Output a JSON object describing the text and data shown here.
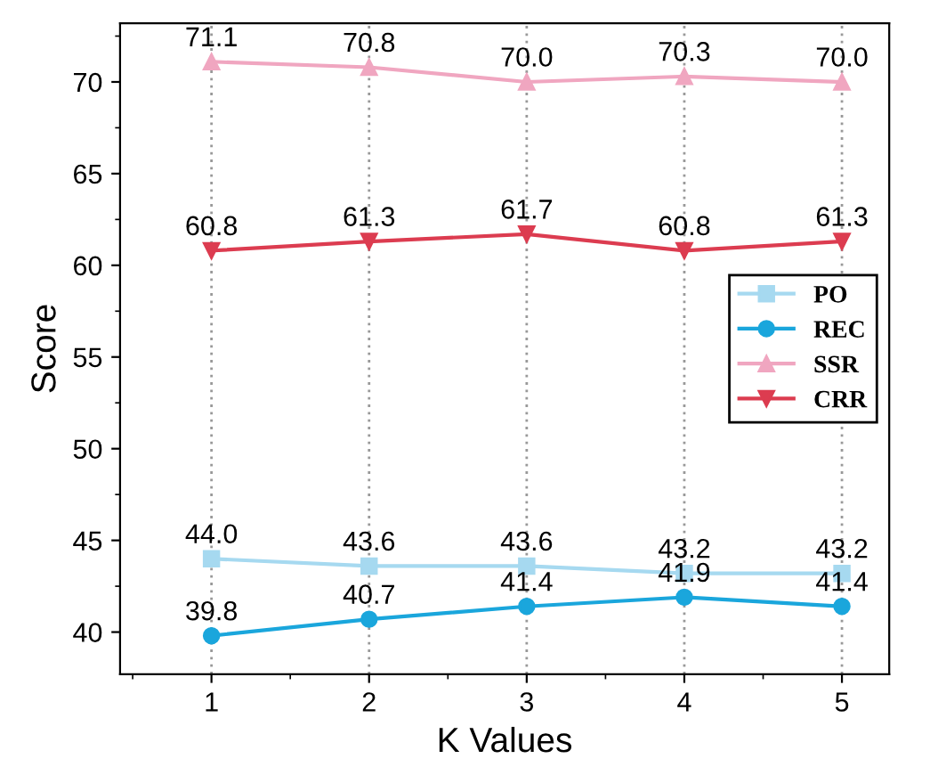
{
  "chart_data": {
    "type": "line",
    "xlabel": "K Values",
    "ylabel": "Score",
    "x": [
      1,
      2,
      3,
      4,
      5
    ],
    "xlim": [
      0.42,
      5.3
    ],
    "xticks": [
      1,
      2,
      3,
      4,
      5
    ],
    "ylim": [
      37.7,
      73.2
    ],
    "yticks": [
      40,
      45,
      50,
      55,
      60,
      65,
      70
    ],
    "grid": "x",
    "legend": "right",
    "series": [
      {
        "name": "PO",
        "color": "#a6d9f0",
        "marker": "square",
        "values": [
          44.0,
          43.6,
          43.6,
          43.2,
          43.2
        ],
        "value_labels": [
          "44.0",
          "43.6",
          "43.6",
          "43.2",
          "43.2"
        ]
      },
      {
        "name": "REC",
        "color": "#1aa6dc",
        "marker": "circle",
        "values": [
          39.8,
          40.7,
          41.4,
          41.9,
          41.4
        ],
        "value_labels": [
          "39.8",
          "40.7",
          "41.4",
          "41.9",
          "41.4"
        ]
      },
      {
        "name": "SSR",
        "color": "#f0a6c0",
        "marker": "triangle",
        "values": [
          71.1,
          70.8,
          70.0,
          70.3,
          70.0
        ],
        "value_labels": [
          "71.1",
          "70.8",
          "70.0",
          "70.3",
          "70.0"
        ]
      },
      {
        "name": "CRR",
        "color": "#dc3c50",
        "marker": "triangle_down",
        "values": [
          60.8,
          61.3,
          61.7,
          60.8,
          61.3
        ],
        "value_labels": [
          "60.8",
          "61.3",
          "61.7",
          "60.8",
          "61.3"
        ]
      }
    ]
  }
}
